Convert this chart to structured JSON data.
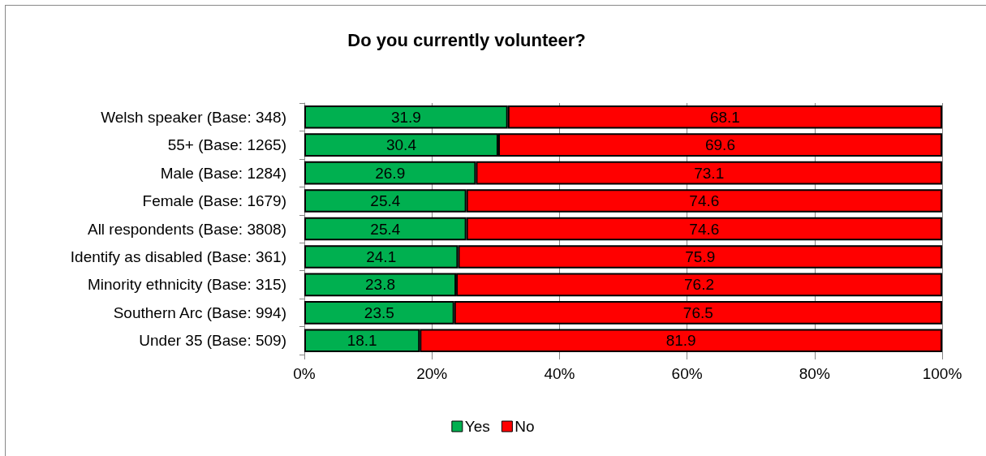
{
  "chart_data": {
    "type": "bar",
    "orientation": "horizontal",
    "stacked": true,
    "title": "Do you currently volunteer?",
    "categories": [
      "Welsh speaker (Base: 348)",
      "55+ (Base: 1265)",
      "Male (Base: 1284)",
      "Female (Base: 1679)",
      "All respondents (Base: 3808)",
      "Identify as disabled (Base: 361)",
      "Minority ethnicity (Base: 315)",
      "Southern Arc (Base: 994)",
      "Under 35 (Base: 509)"
    ],
    "series": [
      {
        "name": "Yes",
        "color": "#00b050",
        "values": [
          31.9,
          30.4,
          26.9,
          25.4,
          25.4,
          24.1,
          23.8,
          23.5,
          18.1
        ]
      },
      {
        "name": "No",
        "color": "#ff0000",
        "values": [
          68.1,
          69.6,
          73.1,
          74.6,
          74.6,
          75.9,
          76.2,
          76.5,
          81.9
        ]
      }
    ],
    "xlim": [
      0,
      100
    ],
    "xticks": [
      {
        "value": 0,
        "label": "0%"
      },
      {
        "value": 20,
        "label": "20%"
      },
      {
        "value": 40,
        "label": "40%"
      },
      {
        "value": 60,
        "label": "60%"
      },
      {
        "value": 80,
        "label": "80%"
      },
      {
        "value": 100,
        "label": "100%"
      }
    ],
    "data_labels": true,
    "grid": "x",
    "legend": "bottom"
  }
}
